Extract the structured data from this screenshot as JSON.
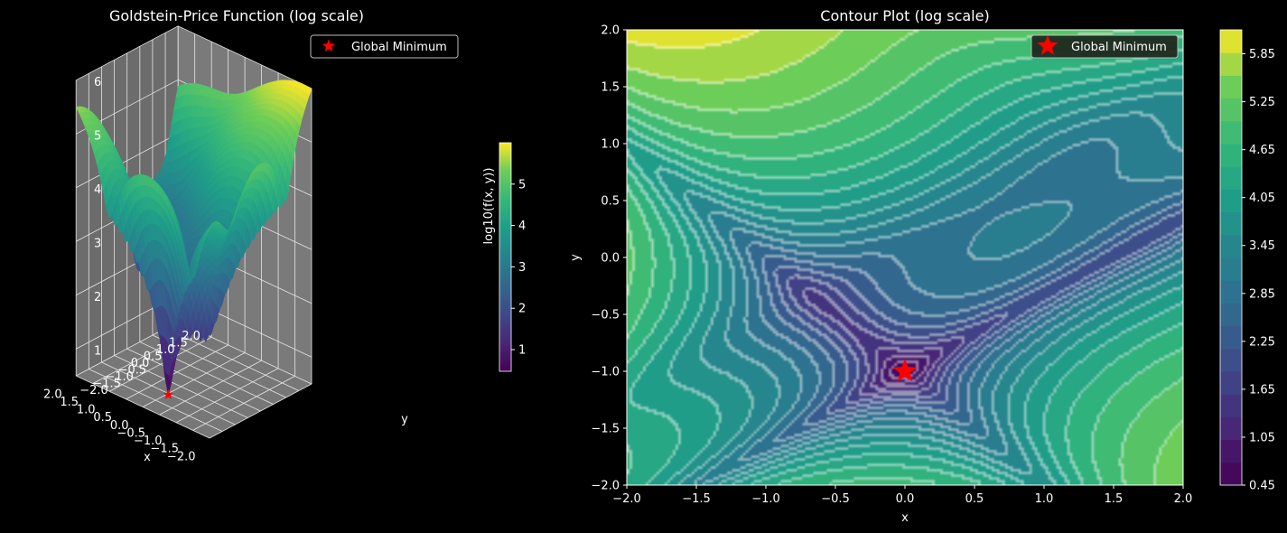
{
  "chart_data": [
    {
      "type": "surface3d",
      "title": "Goldstein-Price Function (log scale)",
      "xlabel": "x",
      "ylabel": "y",
      "zlabel": "",
      "xlim": [
        -2,
        2
      ],
      "ylim": [
        -2,
        2
      ],
      "zlim": [
        0.5,
        6
      ],
      "x_ticks": [
        "−2.0",
        "−1.5",
        "−1.0",
        "−0.5",
        "0.0",
        "0.5",
        "1.0",
        "1.5",
        "2.0"
      ],
      "y_ticks": [
        "−2.0",
        "−1.5",
        "−1.0",
        "−0.5",
        "0.0",
        "0.5",
        "1.0",
        "1.5",
        "2.0"
      ],
      "z_ticks": [
        "1",
        "2",
        "3",
        "4",
        "5",
        "6"
      ],
      "function": "log10(f(x, y)), Goldstein-Price",
      "marker": {
        "label": "Global Minimum",
        "x": 0,
        "y": -1,
        "z": 0.477,
        "color": "#ff0000",
        "shape": "star"
      },
      "legend": {
        "label": "Global Minimum",
        "placement": "top-right"
      },
      "colorbar": {
        "label": "log10(f(x, y))",
        "ticks": [
          "1",
          "2",
          "3",
          "4",
          "5"
        ],
        "min": 0.477,
        "max": 6.0
      },
      "colormap": "viridis",
      "pane_color": "#777777"
    },
    {
      "type": "contour",
      "title": "Contour Plot (log scale)",
      "xlabel": "x",
      "ylabel": "y",
      "xlim": [
        -2,
        2
      ],
      "ylim": [
        -2,
        2
      ],
      "x_ticks": [
        "−2.0",
        "−1.5",
        "−1.0",
        "−0.5",
        "0.0",
        "0.5",
        "1.0",
        "1.5",
        "2.0"
      ],
      "y_ticks": [
        "2.0",
        "1.5",
        "1.0",
        "0.5",
        "0.0",
        "−0.5",
        "−1.0",
        "−1.5",
        "−2.0"
      ],
      "marker": {
        "label": "Global Minimum",
        "x": 0,
        "y": -1,
        "color": "#ff0000",
        "shape": "star"
      },
      "legend": {
        "label": "Global Minimum",
        "placement": "top-right"
      },
      "colorbar": {
        "ticks": [
          "5.85",
          "5.25",
          "4.65",
          "4.05",
          "3.45",
          "2.85",
          "2.25",
          "1.65",
          "1.05",
          "0.45"
        ],
        "min": 0.45,
        "max": 6.15
      },
      "colormap": "viridis",
      "levels": 20
    }
  ]
}
